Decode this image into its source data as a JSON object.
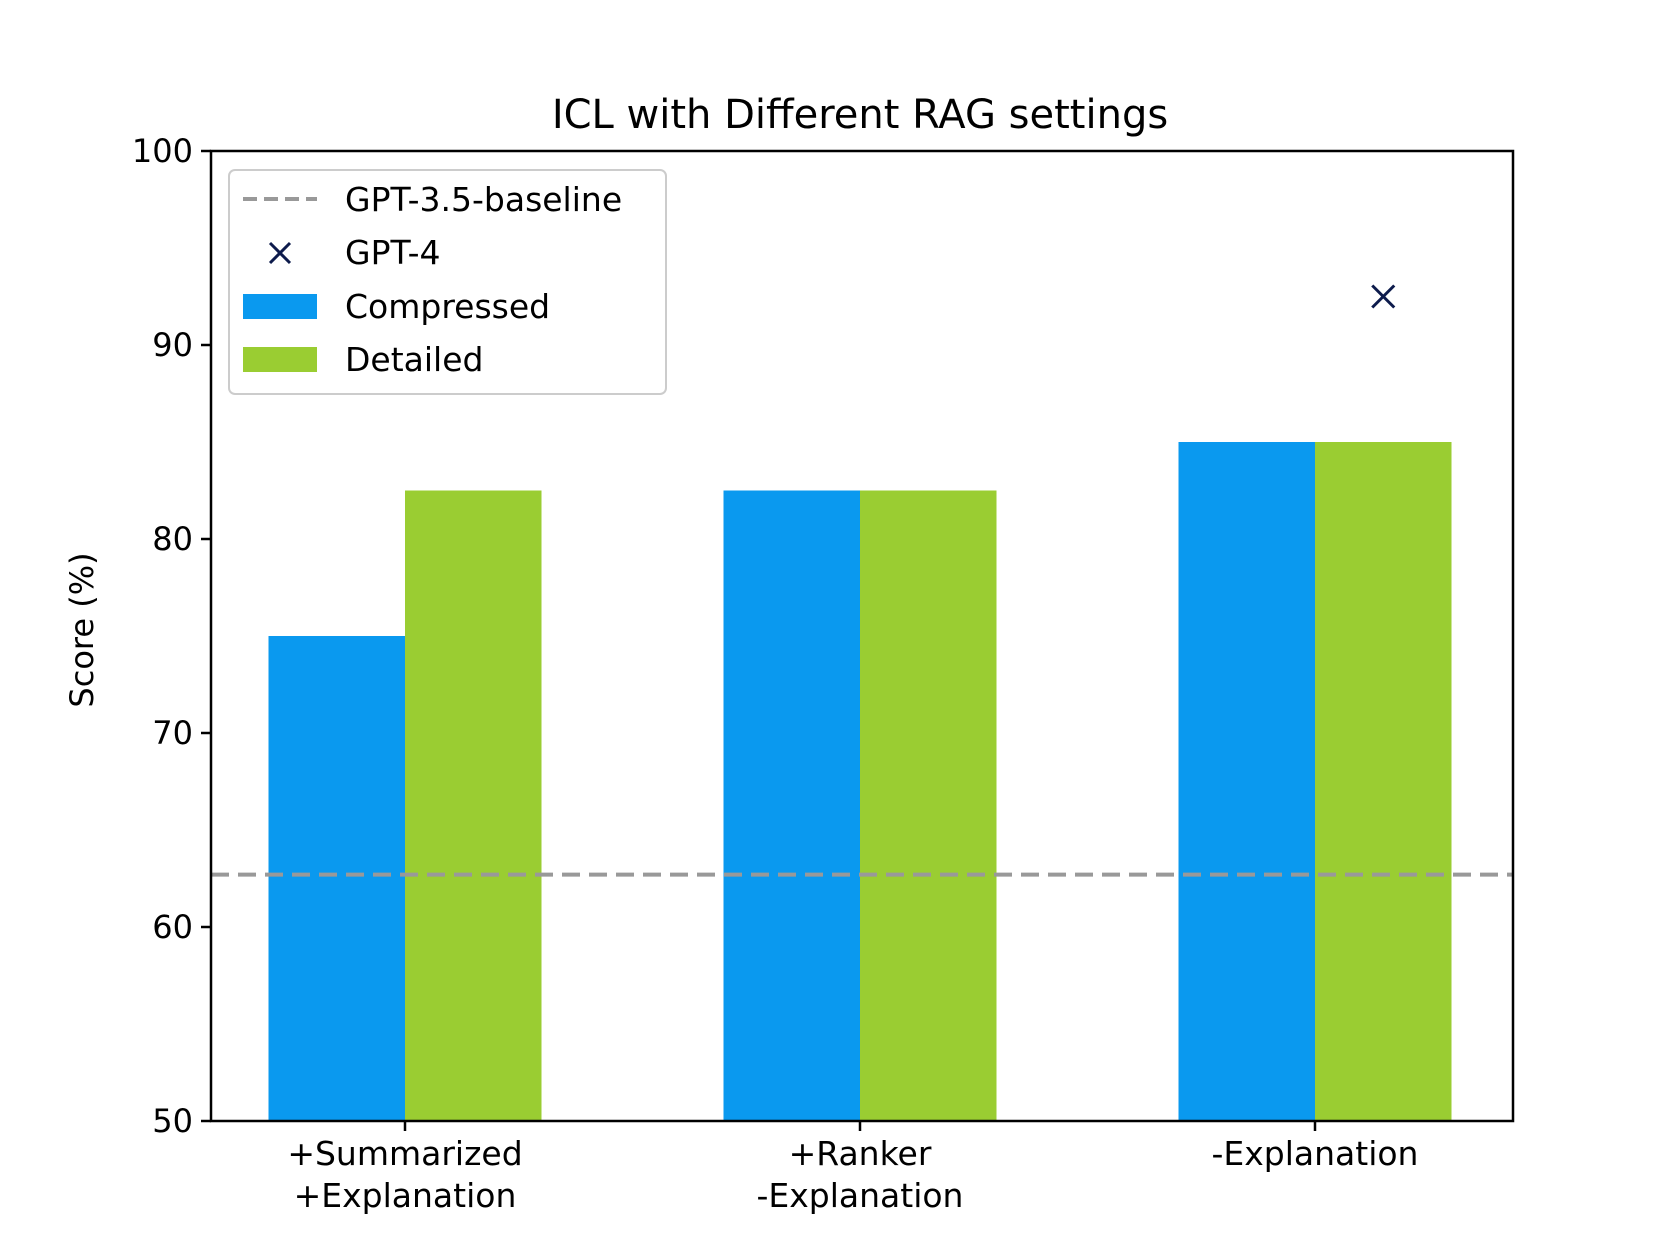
{
  "chart_data": {
    "type": "bar",
    "title": "ICL with Different RAG settings",
    "xlabel": "",
    "ylabel": "Score (%)",
    "ylim": [
      50,
      100
    ],
    "yticks": [
      50,
      60,
      70,
      80,
      90,
      100
    ],
    "categories": [
      [
        "+Summarized",
        "+Explanation"
      ],
      [
        "+Ranker",
        "-Explanation"
      ],
      [
        "-Explanation"
      ]
    ],
    "series": [
      {
        "name": "Compressed",
        "values": [
          75,
          82.5,
          85
        ],
        "color": "#0a99ef"
      },
      {
        "name": "Detailed",
        "values": [
          82.5,
          82.5,
          85
        ],
        "color": "#9acd32"
      }
    ],
    "baseline": {
      "name": "GPT-3.5-baseline",
      "value": 62.7,
      "color": "#999999",
      "style": "dashed"
    },
    "markers": [
      {
        "name": "GPT-4",
        "category_index": 2,
        "offset": "between-bars-right",
        "value": 92.5,
        "color": "#0d1b4c",
        "symbol": "x"
      }
    ],
    "legend": {
      "placement": "top-left",
      "entries": [
        "GPT-3.5-baseline",
        "GPT-4",
        "Compressed",
        "Detailed"
      ]
    },
    "grid": false
  }
}
